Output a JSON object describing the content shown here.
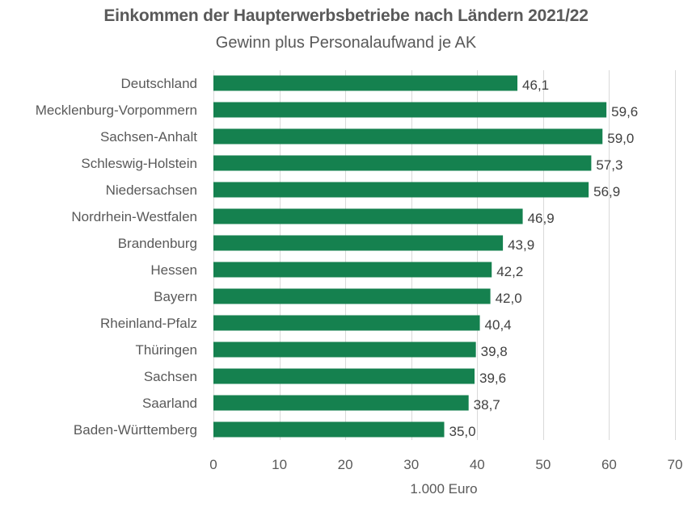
{
  "chart_data": {
    "type": "bar",
    "orientation": "horizontal",
    "title": "Einkommen der Haupterwerbsbetriebe nach Ländern 2021/22",
    "subtitle": "Gewinn plus Personalaufwand je AK",
    "xlabel": "1.000 Euro",
    "ylabel": "",
    "xlim": [
      0,
      70
    ],
    "xticks": [
      0,
      10,
      20,
      30,
      40,
      50,
      60,
      70
    ],
    "grid": true,
    "legend": "none",
    "bar_color": "#15814F",
    "categories": [
      "Deutschland",
      "Mecklenburg-Vorpommern",
      "Sachsen-Anhalt",
      "Schleswig-Holstein",
      "Niedersachsen",
      "Nordrhein-Westfalen",
      "Brandenburg",
      "Hessen",
      "Bayern",
      "Rheinland-Pfalz",
      "Thüringen",
      "Sachsen",
      "Saarland",
      "Baden-Württemberg"
    ],
    "values": [
      46.1,
      59.6,
      59.0,
      57.3,
      56.9,
      46.9,
      43.9,
      42.2,
      42.0,
      40.4,
      39.8,
      39.6,
      38.7,
      35.0
    ],
    "value_labels": [
      "46,1",
      "59,6",
      "59,0",
      "57,3",
      "56,9",
      "46,9",
      "43,9",
      "42,2",
      "42,0",
      "40,4",
      "39,8",
      "39,6",
      "38,7",
      "35,0"
    ]
  }
}
